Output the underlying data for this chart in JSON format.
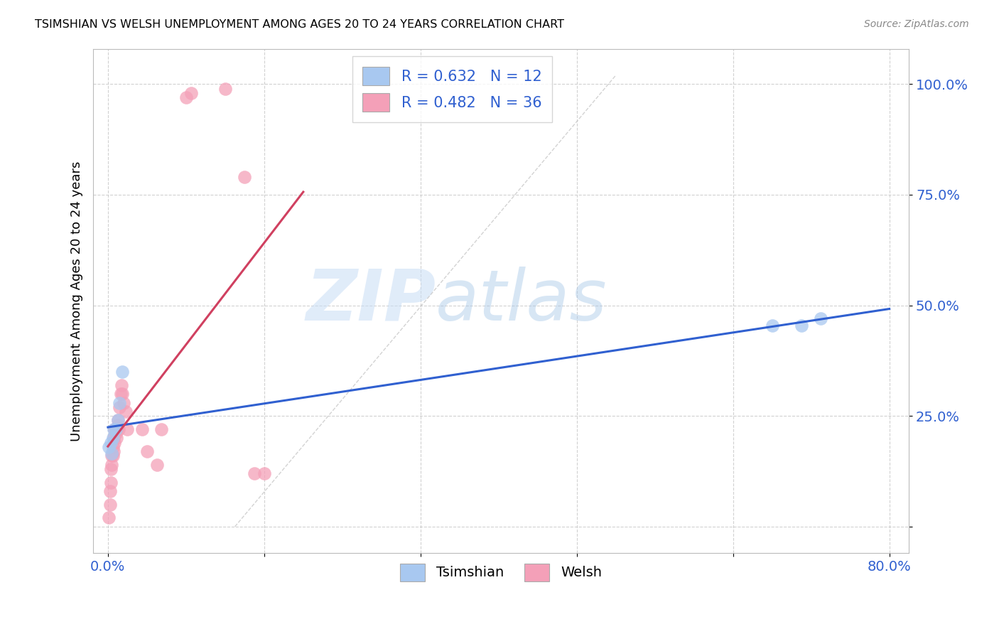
{
  "title": "TSIMSHIAN VS WELSH UNEMPLOYMENT AMONG AGES 20 TO 24 YEARS CORRELATION CHART",
  "source": "Source: ZipAtlas.com",
  "ylabel": "Unemployment Among Ages 20 to 24 years",
  "legend_label1": "Tsimshian",
  "legend_label2": "Welsh",
  "tsimshian_R": "0.632",
  "tsimshian_N": "12",
  "welsh_R": "0.482",
  "welsh_N": "36",
  "color_tsimshian": "#a8c8f0",
  "color_welsh": "#f4a0b8",
  "color_tsimshian_line": "#3060d0",
  "color_welsh_line": "#d04060",
  "color_diag_line": "#c8c8c8",
  "background_color": "#ffffff",
  "watermark_zip": "ZIP",
  "watermark_atlas": "atlas",
  "tsimshian_x": [
    0.001,
    0.003,
    0.004,
    0.005,
    0.006,
    0.008,
    0.01,
    0.012,
    0.015,
    0.68,
    0.71,
    0.73
  ],
  "tsimshian_y": [
    0.18,
    0.19,
    0.165,
    0.2,
    0.22,
    0.22,
    0.24,
    0.28,
    0.35,
    0.455,
    0.455,
    0.47
  ],
  "welsh_x": [
    0.001,
    0.002,
    0.002,
    0.003,
    0.003,
    0.004,
    0.004,
    0.005,
    0.005,
    0.006,
    0.006,
    0.007,
    0.007,
    0.008,
    0.009,
    0.009,
    0.01,
    0.01,
    0.011,
    0.012,
    0.013,
    0.014,
    0.015,
    0.016,
    0.018,
    0.02,
    0.035,
    0.04,
    0.05,
    0.055,
    0.08,
    0.085,
    0.12,
    0.14,
    0.15,
    0.16
  ],
  "welsh_y": [
    0.02,
    0.05,
    0.08,
    0.1,
    0.13,
    0.14,
    0.16,
    0.16,
    0.18,
    0.17,
    0.2,
    0.19,
    0.22,
    0.21,
    0.2,
    0.22,
    0.23,
    0.24,
    0.22,
    0.27,
    0.3,
    0.32,
    0.3,
    0.28,
    0.26,
    0.22,
    0.22,
    0.17,
    0.14,
    0.22,
    0.97,
    0.98,
    0.99,
    0.79,
    0.12,
    0.12
  ],
  "xlim": [
    -0.015,
    0.82
  ],
  "ylim": [
    -0.06,
    1.08
  ],
  "x_tick_positions": [
    0.0,
    0.16,
    0.32,
    0.48,
    0.64,
    0.8
  ],
  "x_tick_labels": [
    "0.0%",
    "",
    "",
    "",
    "",
    "80.0%"
  ],
  "y_tick_positions": [
    0.0,
    0.25,
    0.5,
    0.75,
    1.0
  ],
  "y_tick_labels": [
    "",
    "25.0%",
    "50.0%",
    "75.0%",
    "100.0%"
  ],
  "diag_line_x": [
    0.13,
    0.52
  ],
  "diag_line_y": [
    0.0,
    1.02
  ]
}
